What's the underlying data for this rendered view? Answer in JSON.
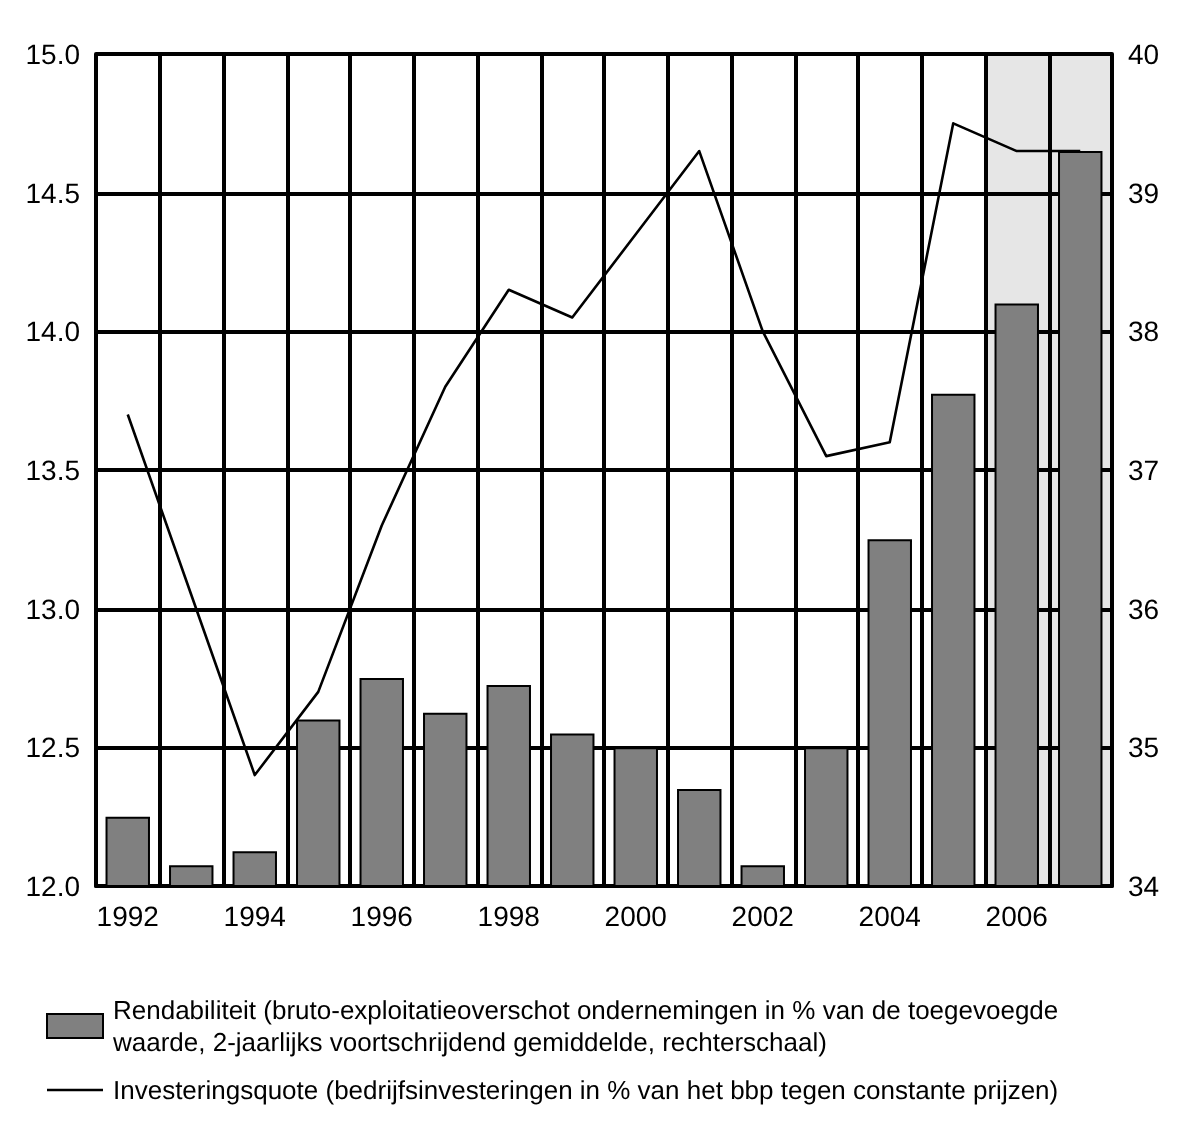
{
  "chart_data": {
    "type": "bar",
    "categories": [
      "1992",
      null,
      "1994",
      null,
      "1996",
      null,
      "1998",
      null,
      "2000",
      null,
      "2002",
      null,
      "2004",
      null,
      "2006",
      null
    ],
    "series": [
      {
        "name": "Rendabiliteit (bruto-exploitatieoverschot ondernemingen in % van de toegevoegde waarde, 2-jaarlijks voortschrijdend gemiddelde, rechterschaal)",
        "axis": "y2",
        "color": "#808080",
        "values": [
          34.5,
          34.15,
          34.25,
          35.2,
          35.5,
          35.25,
          35.45,
          35.1,
          35.0,
          34.7,
          34.15,
          35.0,
          36.5,
          37.55,
          38.2,
          39.3
        ]
      },
      {
        "name": "Investeringsquote (bedrijfsinvesteringen in % van het bbp tegen constante prijzen)",
        "type": "line",
        "color": "#000000",
        "values": [
          13.7,
          13.05,
          12.4,
          12.7,
          13.3,
          13.8,
          14.15,
          14.05,
          14.35,
          14.65,
          14.0,
          13.55,
          13.6,
          14.75,
          14.65,
          14.65
        ]
      }
    ],
    "ylim": [
      12,
      15
    ],
    "yticks": [
      {
        "value": 12,
        "label": "12.0"
      },
      12.5,
      {
        "value": 13,
        "label": "13.0"
      },
      13.5,
      {
        "value": 14,
        "label": "14.0"
      },
      14.5,
      {
        "value": 15,
        "label": "15.0"
      }
    ],
    "y2lim": [
      34,
      40
    ],
    "y2ticks": [
      34,
      35,
      36,
      37,
      38,
      39,
      40
    ],
    "grid": true,
    "legend": "bottom",
    "marker": "none",
    "line_style": "solid"
  }
}
